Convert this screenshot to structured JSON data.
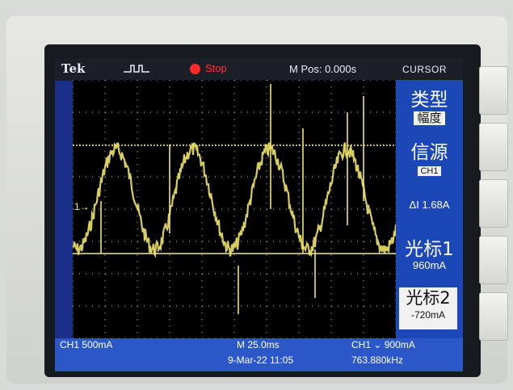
{
  "brand": "Tek",
  "status": "Stop",
  "m_pos": "M Pos: 0.000s",
  "menu": "CURSOR",
  "side": {
    "type_label": "类型",
    "type_value": "幅度",
    "source_label": "信源",
    "source_value": "CH1",
    "delta": "ΔI 1.68A",
    "cursor1_label": "光标1",
    "cursor1_value": "960mA",
    "cursor2_label": "光标2",
    "cursor2_value": "-720mA"
  },
  "bottom": {
    "ch1_scale": "CH1  500mA",
    "timebase": "M 25.0ms",
    "date": "9-Mar-22 11:05",
    "trigger": "CH1 ⌄ 900mA",
    "freq": "763.880kHz"
  },
  "markers": {
    "ch1": "1→"
  },
  "colors": {
    "trace": "#f0e46a",
    "cursor": "#f4eb80",
    "menu_bg": "#1b47b7"
  }
}
